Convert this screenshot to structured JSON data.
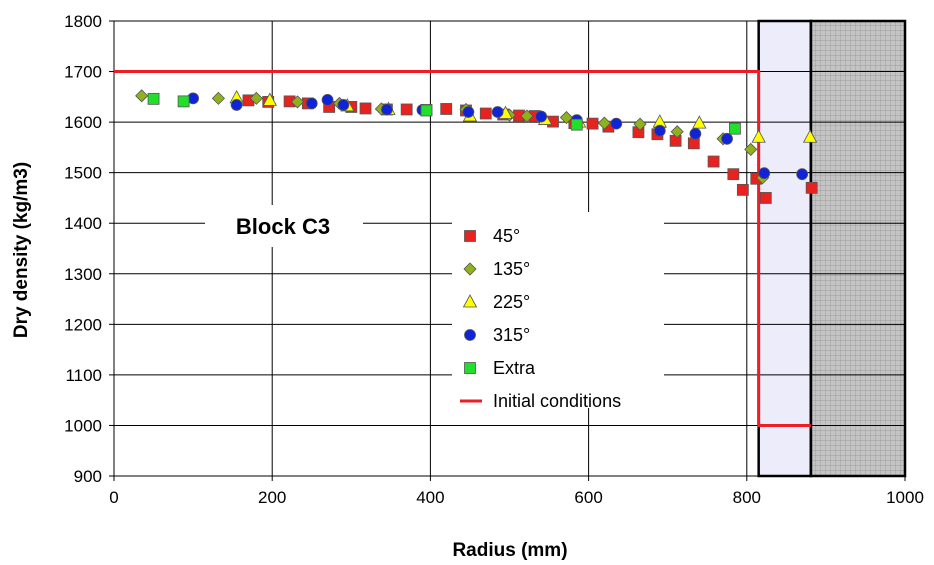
{
  "chart_data": {
    "type": "scatter",
    "title": "",
    "annotation": "Block C3",
    "xlabel": "Radius (mm)",
    "ylabel": "Dry density (kg/m3)",
    "xlim": [
      0,
      1000
    ],
    "ylim": [
      900,
      1800
    ],
    "xticks": [
      0,
      200,
      400,
      600,
      800,
      1000
    ],
    "yticks": [
      900,
      1000,
      1100,
      1200,
      1300,
      1400,
      1500,
      1600,
      1700,
      1800
    ],
    "grid": true,
    "legend_position": "center-right",
    "shaded_regions": [
      {
        "x": [
          815,
          881
        ],
        "color": "#ececfb"
      },
      {
        "x": [
          881,
          1000
        ],
        "color": "#c4c4c4",
        "hatched": true
      }
    ],
    "series": [
      {
        "name": "45°",
        "marker": "square",
        "color": "#e8231f",
        "x": [
          170,
          195,
          222,
          245,
          272,
          300,
          318,
          345,
          370,
          395,
          420,
          445,
          470,
          492,
          512,
          532,
          555,
          582,
          605,
          625,
          663,
          687,
          710,
          733,
          758,
          783,
          795,
          812,
          824,
          882
        ],
        "y": [
          1643,
          1640,
          1641,
          1637,
          1630,
          1630,
          1627,
          1625,
          1625,
          1624,
          1626,
          1623,
          1617,
          1615,
          1613,
          1612,
          1601,
          1598,
          1597,
          1591,
          1580,
          1576,
          1563,
          1558,
          1522,
          1497,
          1466,
          1488,
          1450,
          1470
        ]
      },
      {
        "name": "135°",
        "marker": "diamond",
        "color": "#8fb21c",
        "x": [
          35,
          132,
          180,
          232,
          285,
          338,
          445,
          500,
          522,
          572,
          620,
          665,
          690,
          712,
          770,
          805,
          820
        ],
        "y": [
          1652,
          1647,
          1647,
          1640,
          1637,
          1626,
          1625,
          1614,
          1612,
          1609,
          1598,
          1596,
          1590,
          1581,
          1567,
          1546,
          1490
        ]
      },
      {
        "name": "225°",
        "marker": "triangle",
        "color": "#ffff00",
        "x": [
          155,
          197,
          295,
          347,
          450,
          495,
          545,
          588,
          690,
          740,
          815,
          880
        ],
        "y": [
          1648,
          1643,
          1632,
          1625,
          1612,
          1617,
          1605,
          1600,
          1600,
          1598,
          1570,
          1570
        ]
      },
      {
        "name": "315°",
        "marker": "circle",
        "color": "#0f23d8",
        "x": [
          100,
          155,
          250,
          270,
          290,
          345,
          390,
          448,
          485,
          540,
          585,
          635,
          690,
          735,
          775,
          822,
          870
        ],
        "y": [
          1647,
          1634,
          1637,
          1644,
          1634,
          1625,
          1624,
          1620,
          1620,
          1611,
          1604,
          1597,
          1583,
          1577,
          1567,
          1499,
          1497
        ]
      },
      {
        "name": "Extra",
        "marker": "square",
        "color": "#21e02b",
        "x": [
          50,
          88,
          395,
          585,
          785
        ],
        "y": [
          1646,
          1641,
          1623,
          1595,
          1587
        ]
      },
      {
        "name": "Initial conditions",
        "marker": "line",
        "color": "#ee1c24",
        "x": [
          0,
          815,
          815,
          881
        ],
        "y": [
          1700,
          1700,
          1000,
          1000
        ]
      }
    ]
  }
}
